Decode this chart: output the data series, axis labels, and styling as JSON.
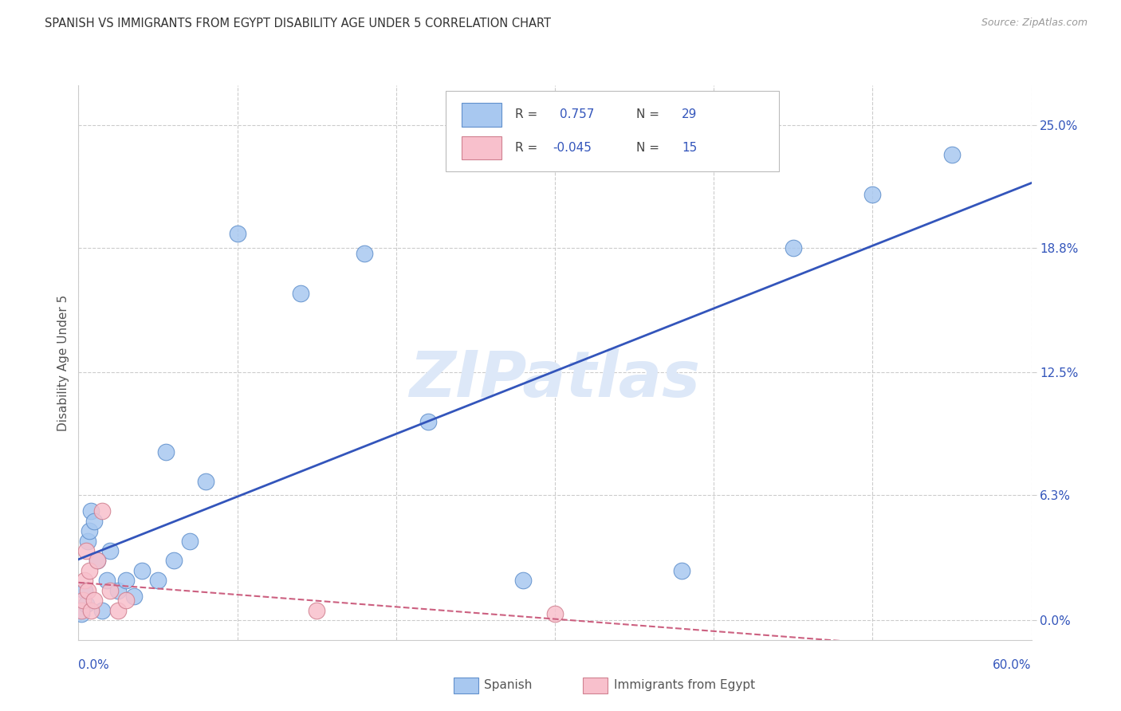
{
  "title": "SPANISH VS IMMIGRANTS FROM EGYPT DISABILITY AGE UNDER 5 CORRELATION CHART",
  "source": "Source: ZipAtlas.com",
  "ylabel": "Disability Age Under 5",
  "ytick_values": [
    0.0,
    6.3,
    12.5,
    18.8,
    25.0
  ],
  "ytick_labels": [
    "0.0%",
    "6.3%",
    "12.5%",
    "18.8%",
    "25.0%"
  ],
  "xlim": [
    0.0,
    60.0
  ],
  "ylim": [
    -1.0,
    27.0
  ],
  "watermark": "ZIPatlas",
  "spanish_x": [
    0.2,
    0.4,
    0.5,
    0.6,
    0.7,
    0.8,
    1.0,
    1.2,
    1.5,
    1.8,
    2.0,
    2.5,
    3.0,
    3.5,
    4.0,
    5.0,
    5.5,
    6.0,
    7.0,
    8.0,
    10.0,
    14.0,
    18.0,
    22.0,
    28.0,
    38.0,
    45.0,
    50.0,
    55.0
  ],
  "spanish_y": [
    0.3,
    1.5,
    0.8,
    4.0,
    4.5,
    5.5,
    5.0,
    3.0,
    0.5,
    2.0,
    3.5,
    1.5,
    2.0,
    1.2,
    2.5,
    2.0,
    8.5,
    3.0,
    4.0,
    7.0,
    19.5,
    16.5,
    18.5,
    10.0,
    2.0,
    2.5,
    18.8,
    21.5,
    23.5
  ],
  "egypt_x": [
    0.2,
    0.3,
    0.4,
    0.5,
    0.6,
    0.7,
    0.8,
    1.0,
    1.2,
    1.5,
    2.0,
    2.5,
    3.0,
    15.0,
    30.0
  ],
  "egypt_y": [
    0.5,
    1.0,
    2.0,
    3.5,
    1.5,
    2.5,
    0.5,
    1.0,
    3.0,
    5.5,
    1.5,
    0.5,
    1.0,
    0.5,
    0.3
  ],
  "spanish_color": "#a8c8f0",
  "spanish_edge": "#6090cc",
  "egypt_color": "#f8c0cc",
  "egypt_edge": "#d08090",
  "blue_line_color": "#3355bb",
  "pink_line_color": "#cc6080",
  "grid_color": "#cccccc",
  "background_color": "#ffffff",
  "title_color": "#333333",
  "axis_label_color": "#555555",
  "tick_color": "#3355bb",
  "watermark_color": "#dde8f8",
  "legend_r1": "0.757",
  "legend_n1": "29",
  "legend_r2": "-0.045",
  "legend_n2": "15"
}
